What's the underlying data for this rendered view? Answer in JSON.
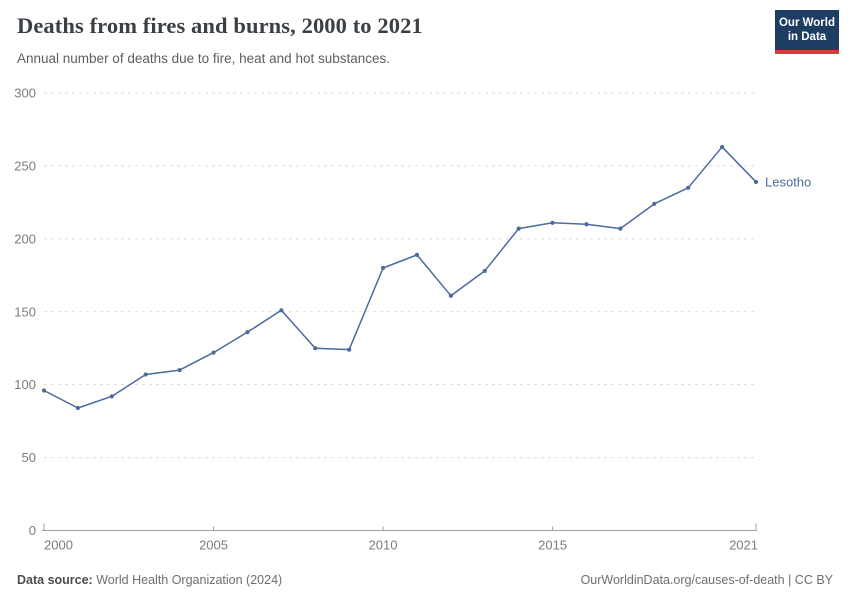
{
  "header": {
    "title": "Deaths from fires and burns, 2000 to 2021",
    "subtitle": "Annual number of deaths due to fire, heat and hot substances."
  },
  "logo": {
    "line1": "Our World",
    "line2": "in Data"
  },
  "chart_data": {
    "type": "line",
    "title": "Deaths from fires and burns, 2000 to 2021",
    "x": [
      2000,
      2001,
      2002,
      2003,
      2004,
      2005,
      2006,
      2007,
      2008,
      2009,
      2010,
      2011,
      2012,
      2013,
      2014,
      2015,
      2016,
      2017,
      2018,
      2019,
      2020,
      2021
    ],
    "series": [
      {
        "name": "Lesotho",
        "color": "#4c6a9c",
        "values": [
          96,
          84,
          92,
          107,
          110,
          122,
          136,
          151,
          125,
          124,
          180,
          189,
          161,
          178,
          207,
          211,
          210,
          207,
          224,
          235,
          263,
          239
        ]
      }
    ],
    "x_ticks": [
      2000,
      2005,
      2010,
      2015,
      2021
    ],
    "y_ticks": [
      0,
      50,
      100,
      150,
      200,
      250,
      300
    ],
    "xlim": [
      2000,
      2021
    ],
    "ylim": [
      0,
      300
    ],
    "grid": "horizontal-dashed",
    "legend_position": "end-of-line-label",
    "xlabel": "",
    "ylabel": ""
  },
  "colors": {
    "line": "#4c6a9c",
    "grid": "#dcdcdc",
    "axis": "#a1a1a1",
    "tick_label": "#7c7c7c",
    "logo_bg": "#1d3d63",
    "logo_bar": "#dc3a35"
  },
  "footer": {
    "source_label": "Data source:",
    "source_text": "World Health Organization (2024)",
    "license_text": "OurWorldinData.org/causes-of-death | CC BY"
  }
}
